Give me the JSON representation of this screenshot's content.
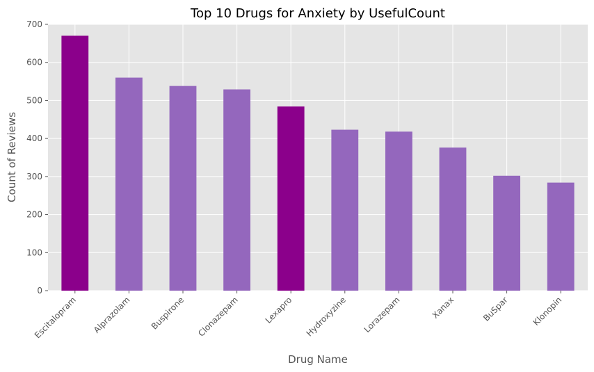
{
  "chart_data": {
    "type": "bar",
    "title": "Top 10 Drugs for Anxiety by UsefulCount",
    "xlabel": "Drug Name",
    "ylabel": "Count of Reviews",
    "categories": [
      "Escitalopram",
      "Alprazolam",
      "Buspirone",
      "Clonazepam",
      "Lexapro",
      "Hydroxyzine",
      "Lorazepam",
      "Xanax",
      "BuSpar",
      "Klonopin"
    ],
    "values": [
      670,
      560,
      538,
      529,
      484,
      423,
      418,
      376,
      302,
      284
    ],
    "bar_colors": [
      "#8b008b",
      "#9467bd",
      "#9467bd",
      "#9467bd",
      "#8b008b",
      "#9467bd",
      "#9467bd",
      "#9467bd",
      "#9467bd",
      "#9467bd"
    ],
    "ylim": [
      0,
      700
    ],
    "yticks": [
      0,
      100,
      200,
      300,
      400,
      500,
      600,
      700
    ],
    "grid": true,
    "legend": "none",
    "background_color": "#e5e5e5",
    "grid_color": "#ffffff"
  }
}
